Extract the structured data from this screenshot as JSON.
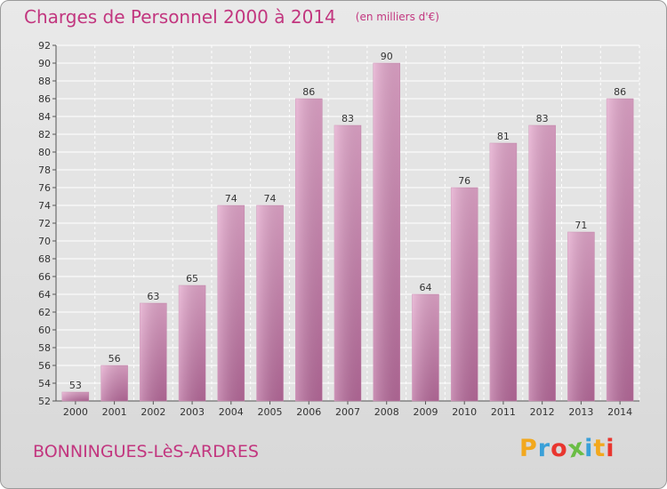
{
  "header": {
    "title": "Charges de Personnel 2000 à 2014",
    "subtitle": "(en milliers d'€)"
  },
  "footer": {
    "city": "BONNINGUES-LèS-ARDRES",
    "logo_text": "Proxiti",
    "logo_colors": [
      "#f2a81d",
      "#3aa0d8",
      "#e9362f",
      "#6abd45",
      "#3aa0d8",
      "#f2a81d",
      "#e9362f"
    ]
  },
  "chart_data": {
    "type": "bar",
    "categories": [
      "2000",
      "2001",
      "2002",
      "2003",
      "2004",
      "2005",
      "2006",
      "2007",
      "2008",
      "2009",
      "2010",
      "2011",
      "2012",
      "2013",
      "2014"
    ],
    "values": [
      53,
      56,
      63,
      65,
      74,
      74,
      86,
      83,
      90,
      64,
      76,
      81,
      83,
      71,
      86
    ],
    "title": "Charges de Personnel 2000 à 2014",
    "xlabel": "",
    "ylabel": "",
    "ylim": [
      52,
      92
    ],
    "yticks": [
      52,
      54,
      56,
      58,
      60,
      62,
      64,
      66,
      68,
      70,
      72,
      74,
      76,
      78,
      80,
      82,
      84,
      86,
      88,
      90,
      92
    ],
    "grid": true,
    "bar_color": "#d98bbb",
    "title_color": "#c2367f"
  }
}
